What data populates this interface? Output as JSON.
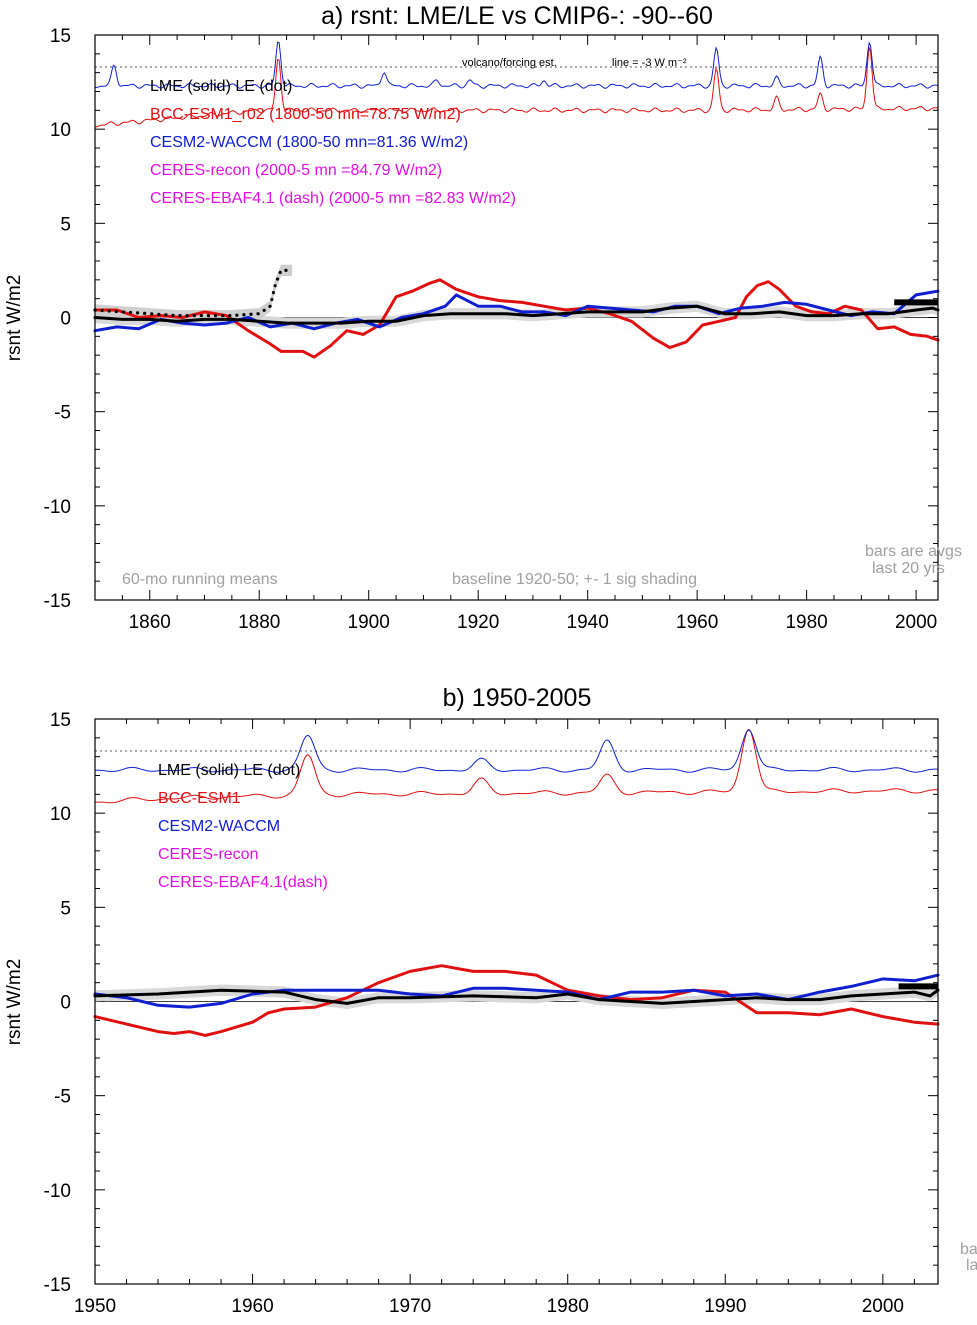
{
  "chart_data": [
    {
      "type": "line",
      "title": "a) rsnt: LME/LE vs CMIP6-: -90--60",
      "ylabel": "rsnt W/m2",
      "xlim": [
        1850,
        2004
      ],
      "ylim": [
        -15,
        15
      ],
      "x_ticks": [
        1860,
        1880,
        1900,
        1920,
        1940,
        1960,
        1980,
        2000
      ],
      "y_ticks": [
        15,
        10,
        5,
        0,
        -5,
        -10,
        -15
      ],
      "y_tick_labels": [
        "15",
        "10",
        "5",
        "0",
        "-5",
        "-10",
        "-15"
      ],
      "legend": [
        {
          "text": "LME (solid)   LE (dot)",
          "color": "#000000"
        },
        {
          "text": "BCC-ESM1_r02 (1800-50 mn=78.75 W/m2)",
          "color": "#e01010"
        },
        {
          "text": "CESM2-WACCM (1800-50 mn=81.36 W/m2)",
          "color": "#1020d0"
        },
        {
          "text": "CERES-recon (2000-5 mn =84.79 W/m2)",
          "color": "#e010e0"
        },
        {
          "text": "CERES-EBAF4.1 (dash) (2000-5 mn =82.83 W/m2)",
          "color": "#e010e0"
        }
      ],
      "annotations": {
        "volcano": "volcano/forcing est.",
        "line_eq": "line = -3 W m⁻²",
        "running": "60-mo running means",
        "baseline": "baseline 1920-50; +- 1 sig shading",
        "bars1": "bars are avgs",
        "bars2": "last 20 yrs"
      },
      "reference_line_y": 13.3,
      "forcing_blue": {
        "base": 12.3,
        "peaks": [
          [
            1853.5,
            1.1
          ],
          [
            1883.5,
            2.4
          ],
          [
            1902.8,
            0.8
          ],
          [
            1912.5,
            0.3
          ],
          [
            1918.5,
            0.3
          ],
          [
            1932,
            0.3
          ],
          [
            1963.5,
            2.0
          ],
          [
            1974.5,
            0.4
          ],
          [
            1982.5,
            1.5
          ],
          [
            1991.5,
            2.4
          ]
        ],
        "color": "#1020d0"
      },
      "forcing_red": {
        "base": 10.2,
        "extra": [
          [
            1880,
            11.0
          ],
          [
            1905,
            11.0
          ],
          [
            1960,
            11.0
          ],
          [
            2004,
            11.1
          ]
        ],
        "peaks": [
          [
            1883.5,
            2.8
          ],
          [
            1963.5,
            2.2
          ],
          [
            1974.5,
            0.6
          ],
          [
            1982.5,
            0.8
          ],
          [
            1991.5,
            3.4
          ]
        ],
        "color": "#e01010"
      },
      "series": [
        {
          "name": "BCC-ESM1_r02",
          "color": "#e01010",
          "x": [
            1850,
            1854,
            1858,
            1862,
            1866,
            1870,
            1874,
            1878,
            1882,
            1884,
            1888,
            1890,
            1893,
            1896,
            1899,
            1902,
            1905,
            1908,
            1911,
            1913,
            1916,
            1920,
            1924,
            1928,
            1932,
            1936,
            1940,
            1944,
            1948,
            1952,
            1955,
            1958,
            1961,
            1964,
            1967,
            1969,
            1971,
            1973,
            1975,
            1978,
            1981,
            1984,
            1987,
            1990,
            1993,
            1996,
            1999,
            2002,
            2004
          ],
          "y": [
            0.4,
            0.4,
            0.0,
            0.1,
            0.0,
            0.3,
            0.1,
            -0.7,
            -1.4,
            -1.8,
            -1.8,
            -2.1,
            -1.5,
            -0.7,
            -0.9,
            -0.4,
            1.1,
            1.4,
            1.8,
            2.0,
            1.5,
            1.1,
            0.9,
            0.8,
            0.6,
            0.4,
            0.5,
            0.2,
            -0.2,
            -1.1,
            -1.6,
            -1.3,
            -0.4,
            -0.2,
            0.0,
            1.1,
            1.7,
            1.9,
            1.5,
            0.6,
            0.3,
            0.2,
            0.6,
            0.4,
            -0.6,
            -0.5,
            -0.9,
            -1.0,
            -1.2
          ]
        },
        {
          "name": "CESM2-WACCM",
          "color": "#1020d0",
          "x": [
            1850,
            1854,
            1858,
            1862,
            1866,
            1870,
            1874,
            1878,
            1882,
            1886,
            1890,
            1894,
            1898,
            1902,
            1906,
            1910,
            1914,
            1916,
            1920,
            1924,
            1928,
            1932,
            1936,
            1940,
            1944,
            1948,
            1952,
            1956,
            1960,
            1964,
            1968,
            1972,
            1976,
            1980,
            1984,
            1988,
            1992,
            1996,
            2000,
            2004
          ],
          "y": [
            -0.7,
            -0.5,
            -0.6,
            -0.1,
            -0.3,
            -0.4,
            -0.3,
            0.0,
            -0.5,
            -0.3,
            -0.6,
            -0.3,
            -0.1,
            -0.5,
            0.0,
            0.2,
            0.6,
            1.2,
            0.6,
            0.6,
            0.3,
            0.3,
            0.1,
            0.6,
            0.5,
            0.4,
            0.3,
            0.6,
            0.6,
            0.2,
            0.5,
            0.6,
            0.8,
            0.7,
            0.4,
            0.1,
            0.3,
            0.2,
            1.2,
            1.4
          ]
        },
        {
          "name": "LME",
          "color": "#000000",
          "x": [
            1850,
            1855,
            1860,
            1865,
            1870,
            1875,
            1880,
            1885,
            1890,
            1895,
            1900,
            1905,
            1910,
            1915,
            1920,
            1925,
            1930,
            1935,
            1940,
            1945,
            1950,
            1955,
            1960,
            1965,
            1970,
            1975,
            1980,
            1985,
            1990,
            1995,
            2000,
            2003,
            2004
          ],
          "y": [
            0.0,
            -0.1,
            -0.1,
            -0.2,
            -0.1,
            -0.1,
            -0.2,
            -0.3,
            -0.3,
            -0.3,
            -0.2,
            -0.2,
            0.1,
            0.2,
            0.2,
            0.2,
            0.1,
            0.2,
            0.3,
            0.3,
            0.3,
            0.5,
            0.6,
            0.2,
            0.2,
            0.3,
            0.1,
            0.1,
            0.2,
            0.2,
            0.4,
            0.5,
            0.4
          ]
        },
        {
          "name": "LE",
          "color": "#000000",
          "dotted": true,
          "x": [
            1850,
            1855,
            1860,
            1865,
            1870,
            1875,
            1880,
            1882,
            1883,
            1884,
            1885,
            1886
          ],
          "y": [
            0.4,
            0.3,
            0.2,
            0.1,
            0.1,
            0.1,
            0.2,
            0.6,
            1.8,
            2.5,
            2.5,
            2.5
          ]
        }
      ],
      "shade_band": {
        "half_width": 0.3
      },
      "bars": [
        {
          "x": [
            1996,
            2004
          ],
          "y": 0.8,
          "color": "#000000"
        }
      ]
    },
    {
      "type": "line",
      "title": "b) 1950-2005",
      "ylabel": "rsnt W/m2",
      "xlim": [
        1950,
        2003.5
      ],
      "ylim": [
        -15,
        15
      ],
      "x_ticks": [
        1950,
        1960,
        1970,
        1980,
        1990,
        2000
      ],
      "y_ticks": [
        15,
        10,
        5,
        0,
        -5,
        -10,
        -15
      ],
      "y_tick_labels": [
        "15",
        "10",
        "5",
        "0",
        "-5",
        "-10",
        "-15"
      ],
      "legend": [
        {
          "text": "LME (solid)      LE (dot)",
          "color": "#000000"
        },
        {
          "text": "BCC-ESM1",
          "color": "#e01010"
        },
        {
          "text": "CESM2-WACCM",
          "color": "#1020d0"
        },
        {
          "text": "CERES-recon",
          "color": "#e010e0"
        },
        {
          "text": "CERES-EBAF4.1(dash)",
          "color": "#e010e0"
        }
      ],
      "annotations": {
        "bars1": "ba",
        "bars2": "la"
      },
      "reference_line_y": 13.3,
      "forcing_blue": {
        "base": 12.3,
        "peaks": [
          [
            1963.5,
            1.8
          ],
          [
            1974.5,
            0.5
          ],
          [
            1982.5,
            1.5
          ],
          [
            1991.5,
            2.2
          ]
        ],
        "color": "#1020d0"
      },
      "forcing_red": {
        "base": 10.6,
        "extra": [
          [
            1955,
            10.8
          ],
          [
            1965,
            11.0
          ],
          [
            2003.5,
            11.2
          ]
        ],
        "peaks": [
          [
            1963.5,
            2.1
          ],
          [
            1974.5,
            0.7
          ],
          [
            1982.5,
            0.9
          ],
          [
            1991.5,
            3.4
          ]
        ],
        "color": "#e01010"
      },
      "series": [
        {
          "name": "BCC-ESM1",
          "color": "#e01010",
          "x": [
            1950,
            1952,
            1954,
            1955,
            1956,
            1957,
            1958,
            1960,
            1961,
            1962,
            1964,
            1966,
            1968,
            1970,
            1972,
            1974,
            1976,
            1978,
            1980,
            1982,
            1984,
            1986,
            1988,
            1990,
            1992,
            1994,
            1996,
            1998,
            2000,
            2002,
            2003.5
          ],
          "y": [
            -0.8,
            -1.2,
            -1.6,
            -1.7,
            -1.6,
            -1.8,
            -1.6,
            -1.1,
            -0.6,
            -0.4,
            -0.3,
            0.2,
            1.0,
            1.6,
            1.9,
            1.6,
            1.6,
            1.4,
            0.6,
            0.3,
            0.1,
            0.2,
            0.6,
            0.5,
            -0.6,
            -0.6,
            -0.7,
            -0.4,
            -0.8,
            -1.1,
            -1.2
          ]
        },
        {
          "name": "CESM2-WACCM",
          "color": "#1020d0",
          "x": [
            1950,
            1952,
            1954,
            1956,
            1958,
            1960,
            1962,
            1964,
            1966,
            1968,
            1970,
            1972,
            1974,
            1976,
            1978,
            1980,
            1982,
            1984,
            1986,
            1988,
            1990,
            1992,
            1994,
            1996,
            1998,
            2000,
            2002,
            2003.5
          ],
          "y": [
            0.4,
            0.2,
            -0.2,
            -0.3,
            -0.1,
            0.4,
            0.6,
            0.6,
            0.6,
            0.6,
            0.4,
            0.3,
            0.7,
            0.7,
            0.6,
            0.5,
            0.1,
            0.5,
            0.5,
            0.6,
            0.3,
            0.4,
            0.1,
            0.5,
            0.8,
            1.2,
            1.1,
            1.4
          ]
        },
        {
          "name": "LME",
          "color": "#000000",
          "x": [
            1950,
            1954,
            1958,
            1962,
            1964,
            1966,
            1968,
            1970,
            1974,
            1978,
            1980,
            1982,
            1984,
            1986,
            1988,
            1990,
            1992,
            1994,
            1996,
            1998,
            2000,
            2002,
            2003,
            2003.5
          ],
          "y": [
            0.3,
            0.4,
            0.6,
            0.5,
            0.1,
            -0.1,
            0.2,
            0.2,
            0.3,
            0.2,
            0.4,
            0.1,
            0.0,
            -0.1,
            0.0,
            0.1,
            0.2,
            0.1,
            0.1,
            0.3,
            0.4,
            0.5,
            0.3,
            0.6
          ]
        }
      ],
      "shade_band": {
        "half_width": 0.3
      },
      "bars": [
        {
          "x": [
            2001,
            2004
          ],
          "y": 0.8,
          "color": "#000000"
        }
      ]
    }
  ]
}
